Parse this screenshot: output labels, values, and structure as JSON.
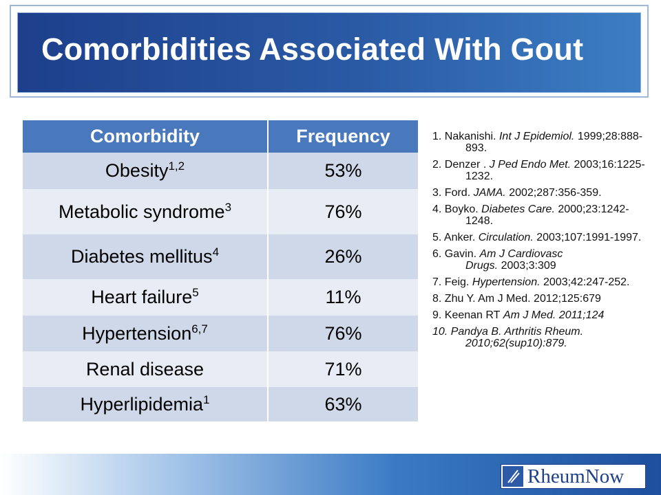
{
  "header": {
    "title": "Comorbidities Associated With Gout"
  },
  "table": {
    "columns": [
      "Comorbidity",
      "Frequency"
    ],
    "rows": [
      {
        "label": "Obesity",
        "sup": "1,2",
        "frequency": "53%"
      },
      {
        "label": "Metabolic syndrome",
        "sup": "3",
        "frequency": "76%"
      },
      {
        "label": "Diabetes mellitus",
        "sup": "4",
        "frequency": "26%"
      },
      {
        "label": "Heart failure",
        "sup": "5",
        "frequency": "11%"
      },
      {
        "label": "Hypertension",
        "sup": "6,7",
        "frequency": "76%"
      },
      {
        "label": "Renal disease",
        "frequency": "71%"
      },
      {
        "label": "Hyperlipidemia",
        "sup": "1",
        "frequency": "63%"
      }
    ]
  },
  "references": [
    [
      {
        "text": "1. Nakanishi."
      },
      {
        "text": "Int J Epidemiol.",
        "italic": true
      },
      {
        "text": "1999;28:888-893."
      }
    ],
    [
      {
        "text": "2. Denzer ."
      },
      {
        "text": "J Ped Endo Met.",
        "italic": true
      },
      {
        "text": "2003;16:1225-1232."
      }
    ],
    [
      {
        "text": "3. Ford."
      },
      {
        "text": "JAMA.",
        "italic": true
      },
      {
        "text": "2002;287:356-359."
      }
    ],
    [
      {
        "text": "4. Boyko."
      },
      {
        "text": "Diabetes Care.",
        "italic": true
      },
      {
        "text": "2000;23:1242-1248."
      }
    ],
    [
      {
        "text": "5. Anker."
      },
      {
        "text": "Circulation.",
        "italic": true
      },
      {
        "text": "2003;107:1991-1997."
      }
    ],
    [
      {
        "text": "6. Gavin."
      },
      {
        "text": "Am J Cardiovasc Drugs.",
        "italic": true
      },
      {
        "text": "2003;3:309"
      }
    ],
    [
      {
        "text": "7. Feig."
      },
      {
        "text": "Hypertension.",
        "italic": true
      },
      {
        "text": "2003;42:247-252."
      }
    ],
    [
      {
        "text": "8. Zhu Y. Am J Med. 2012;125:679"
      }
    ],
    [
      {
        "text": "9. Keenan RT"
      },
      {
        "text": "Am J Med. 2011;124",
        "italic": true
      }
    ],
    [
      {
        "text": "10. Pandya B. Arthritis Rheum. 2010;62(sup10):879.",
        "italic": true
      }
    ]
  ],
  "footer": {
    "logo": "RheumNow"
  }
}
